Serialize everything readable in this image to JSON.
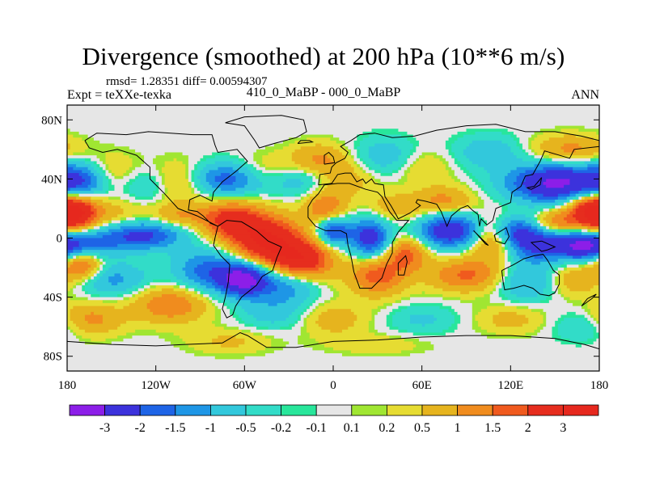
{
  "title": "Divergence (smoothed) at 200 hPa (10**6 m/s)",
  "stats": {
    "text": "rmsd= 1.28351 diff= 0.00594307"
  },
  "labels": {
    "left": "Expt = teXXe-texka",
    "center": "410_0_MaBP - 000_0_MaBP",
    "right": "ANN"
  },
  "chart_data": {
    "type": "heatmap",
    "title": "Divergence (smoothed) at 200 hPa (10**6 m/s)",
    "x_axis": {
      "range": [
        -180,
        180
      ],
      "ticks": [
        -180,
        -120,
        -60,
        0,
        60,
        120,
        180
      ],
      "tick_labels": [
        "180",
        "120W",
        "60W",
        "0",
        "60E",
        "120E",
        "180"
      ]
    },
    "y_axis": {
      "range": [
        -90,
        90
      ],
      "ticks": [
        80,
        40,
        0,
        -40,
        -80
      ],
      "tick_labels": [
        "80N",
        "40N",
        "0",
        "40S",
        "80S"
      ]
    },
    "colorbar": {
      "labels": [
        "-3",
        "-2",
        "-1.5",
        "-1",
        "-0.5",
        "-0.2",
        "-0.1",
        "0.1",
        "0.2",
        "0.5",
        "1",
        "1.5",
        "2",
        "3"
      ],
      "levels": [
        -3,
        -2,
        -1.5,
        -1,
        -0.5,
        -0.2,
        -0.1,
        0.1,
        0.2,
        0.5,
        1,
        1.5,
        2,
        3
      ],
      "colors": [
        "#8c1ee8",
        "#3c32dc",
        "#1e64e6",
        "#1e96e6",
        "#32c8dc",
        "#32dcc8",
        "#28e69b",
        "#e6e6e6",
        "#a0e632",
        "#e6dc32",
        "#e6b41e",
        "#f08c1e",
        "#f05a1e",
        "#e62d1e",
        "#e6281e"
      ]
    },
    "blobs": [
      {
        "lon": -172,
        "lat": 38,
        "v": -2.2,
        "rlon": 14,
        "rlat": 9
      },
      {
        "lon": -150,
        "lat": 42,
        "v": 0.9,
        "rlon": 16,
        "rlat": 10
      },
      {
        "lon": -128,
        "lat": 36,
        "v": -0.9,
        "rlon": 14,
        "rlat": 9
      },
      {
        "lon": -104,
        "lat": 38,
        "v": 1.0,
        "rlon": 14,
        "rlat": 10
      },
      {
        "lon": -72,
        "lat": 40,
        "v": -2.0,
        "rlon": 18,
        "rlat": 8
      },
      {
        "lon": -45,
        "lat": 45,
        "v": 0.8,
        "rlon": 18,
        "rlat": 8
      },
      {
        "lon": -25,
        "lat": 40,
        "v": -1.0,
        "rlon": 14,
        "rlat": 8
      },
      {
        "lon": -10,
        "lat": 53,
        "v": 1.1,
        "rlon": 14,
        "rlat": 8
      },
      {
        "lon": 10,
        "lat": 40,
        "v": 0.7,
        "rlon": 14,
        "rlat": 9
      },
      {
        "lon": 35,
        "lat": 55,
        "v": -0.9,
        "rlon": 15,
        "rlat": 9
      },
      {
        "lon": 60,
        "lat": 48,
        "v": 0.6,
        "rlon": 14,
        "rlat": 8
      },
      {
        "lon": 105,
        "lat": 58,
        "v": -0.9,
        "rlon": 16,
        "rlat": 8
      },
      {
        "lon": 150,
        "lat": 37,
        "v": -3.2,
        "rlon": 22,
        "rlat": 9
      },
      {
        "lon": 160,
        "lat": 60,
        "v": 1.2,
        "rlon": 18,
        "rlat": 7
      },
      {
        "lon": 175,
        "lat": 18,
        "v": 2.5,
        "rlon": 12,
        "rlat": 9
      },
      {
        "lon": -175,
        "lat": 18,
        "v": 2.3,
        "rlon": 12,
        "rlat": 9
      },
      {
        "lon": -145,
        "lat": 15,
        "v": 0.7,
        "rlon": 16,
        "rlat": 8
      },
      {
        "lon": -165,
        "lat": -5,
        "v": -1.3,
        "rlon": 14,
        "rlat": 7
      },
      {
        "lon": -130,
        "lat": 2,
        "v": -2.3,
        "rlon": 20,
        "rlat": 7
      },
      {
        "lon": -105,
        "lat": 15,
        "v": 1.0,
        "rlon": 12,
        "rlat": 6
      },
      {
        "lon": -70,
        "lat": 12,
        "v": 2.3,
        "rlon": 14,
        "rlat": 9
      },
      {
        "lon": -45,
        "lat": -2,
        "v": 3.0,
        "rlon": 16,
        "rlat": 12
      },
      {
        "lon": -20,
        "lat": -15,
        "v": 2.5,
        "rlon": 14,
        "rlat": 10
      },
      {
        "lon": -5,
        "lat": 20,
        "v": 1.5,
        "rlon": 10,
        "rlat": 8
      },
      {
        "lon": -85,
        "lat": -22,
        "v": -1.7,
        "rlon": 16,
        "rlat": 10
      },
      {
        "lon": -60,
        "lat": -28,
        "v": -3.4,
        "rlon": 12,
        "rlat": 8
      },
      {
        "lon": -150,
        "lat": -28,
        "v": -1.2,
        "rlon": 18,
        "rlat": 8
      },
      {
        "lon": -170,
        "lat": -18,
        "v": 2.0,
        "rlon": 10,
        "rlat": 8
      },
      {
        "lon": -30,
        "lat": -32,
        "v": -1.4,
        "rlon": 14,
        "rlat": 8
      },
      {
        "lon": 0,
        "lat": 5,
        "v": -2.2,
        "rlon": 8,
        "rlat": 7
      },
      {
        "lon": 25,
        "lat": 0,
        "v": -2.5,
        "rlon": 10,
        "rlat": 10
      },
      {
        "lon": 40,
        "lat": 20,
        "v": 0.8,
        "rlon": 14,
        "rlat": 8
      },
      {
        "lon": 50,
        "lat": -10,
        "v": 1.6,
        "rlon": 10,
        "rlat": 8
      },
      {
        "lon": 30,
        "lat": -25,
        "v": 1.8,
        "rlon": 14,
        "rlat": 10
      },
      {
        "lon": 80,
        "lat": 5,
        "v": -2.8,
        "rlon": 16,
        "rlat": 8
      },
      {
        "lon": 75,
        "lat": 25,
        "v": 1.2,
        "rlon": 14,
        "rlat": 7
      },
      {
        "lon": 110,
        "lat": 0,
        "v": 2.2,
        "rlon": 12,
        "rlat": 10
      },
      {
        "lon": 120,
        "lat": 5,
        "v": -1.8,
        "rlon": 10,
        "rlat": 7
      },
      {
        "lon": 135,
        "lat": -3,
        "v": -2.5,
        "rlon": 16,
        "rlat": 9
      },
      {
        "lon": 170,
        "lat": -5,
        "v": -3.0,
        "rlon": 14,
        "rlat": 7
      },
      {
        "lon": 150,
        "lat": 10,
        "v": 1.6,
        "rlon": 10,
        "rlat": 6
      },
      {
        "lon": 90,
        "lat": -25,
        "v": 1.6,
        "rlon": 18,
        "rlat": 8
      },
      {
        "lon": 130,
        "lat": -30,
        "v": -1.1,
        "rlon": 14,
        "rlat": 9
      },
      {
        "lon": 165,
        "lat": -28,
        "v": 1.0,
        "rlon": 12,
        "rlat": 8
      },
      {
        "lon": -110,
        "lat": -45,
        "v": 1.5,
        "rlon": 18,
        "rlat": 9
      },
      {
        "lon": -165,
        "lat": -55,
        "v": 1.2,
        "rlon": 16,
        "rlat": 8
      },
      {
        "lon": -40,
        "lat": -50,
        "v": -0.8,
        "rlon": 16,
        "rlat": 8
      },
      {
        "lon": 0,
        "lat": -55,
        "v": 0.8,
        "rlon": 16,
        "rlat": 8
      },
      {
        "lon": 60,
        "lat": -55,
        "v": -0.6,
        "rlon": 16,
        "rlat": 7
      },
      {
        "lon": 120,
        "lat": -55,
        "v": 0.7,
        "rlon": 16,
        "rlat": 7
      },
      {
        "lon": 170,
        "lat": -60,
        "v": -0.7,
        "rlon": 14,
        "rlat": 7
      },
      {
        "lon": -70,
        "lat": -70,
        "v": 0.6,
        "rlon": 20,
        "rlat": 6
      },
      {
        "lon": 30,
        "lat": -72,
        "v": 0.4,
        "rlon": 25,
        "rlat": 5
      }
    ]
  }
}
